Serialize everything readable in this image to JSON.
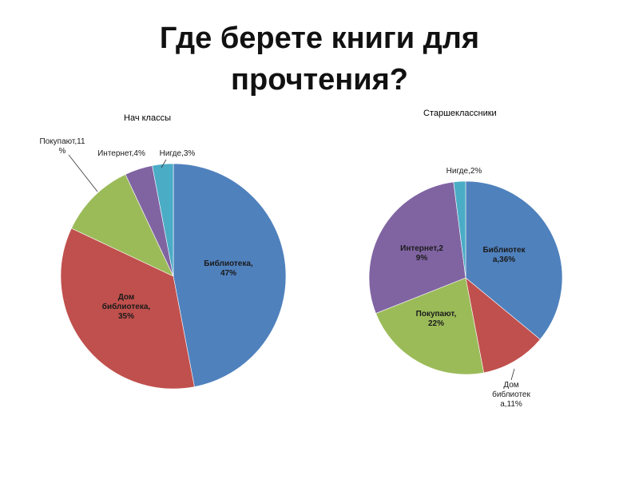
{
  "title": {
    "line1": "Где берете книги для",
    "line2": "прочтения?"
  },
  "chart_data": [
    {
      "type": "pie",
      "title": "Нач классы",
      "slices": [
        {
          "label": "Библиотека",
          "value": 47,
          "color": "#4F81BD",
          "label_lines": [
            "Библиотека,",
            "47%"
          ]
        },
        {
          "label": "Дом библиотека",
          "value": 35,
          "color": "#C0504D",
          "label_lines": [
            "Дом",
            "библиотека,",
            "35%"
          ]
        },
        {
          "label": "Покупают",
          "value": 11,
          "color": "#9BBB59",
          "label_lines": [
            "Покупают,11",
            "%"
          ]
        },
        {
          "label": "Интернет",
          "value": 4,
          "color": "#8064A2",
          "label_lines": [
            "Интернет,4%"
          ]
        },
        {
          "label": "Нигде",
          "value": 3,
          "color": "#4BACC6",
          "label_lines": [
            "Нигде,3%"
          ]
        }
      ]
    },
    {
      "type": "pie",
      "title": "Старшеклассники",
      "slices": [
        {
          "label": "Библиотека",
          "value": 36,
          "color": "#4F81BD",
          "label_lines": [
            "Библиотек",
            "а,36%"
          ]
        },
        {
          "label": "Дом библиотека",
          "value": 11,
          "color": "#C0504D",
          "label_lines": [
            "Дом",
            "библиотек",
            "а,11%"
          ]
        },
        {
          "label": "Покупают",
          "value": 22,
          "color": "#9BBB59",
          "label_lines": [
            "Покупают,",
            "22%"
          ]
        },
        {
          "label": "Интернет",
          "value": 29,
          "color": "#8064A2",
          "label_lines": [
            "Интернет,2",
            "9%"
          ]
        },
        {
          "label": "Нигде",
          "value": 2,
          "color": "#4BACC6",
          "label_lines": [
            "Нигде,2%"
          ]
        }
      ]
    }
  ]
}
